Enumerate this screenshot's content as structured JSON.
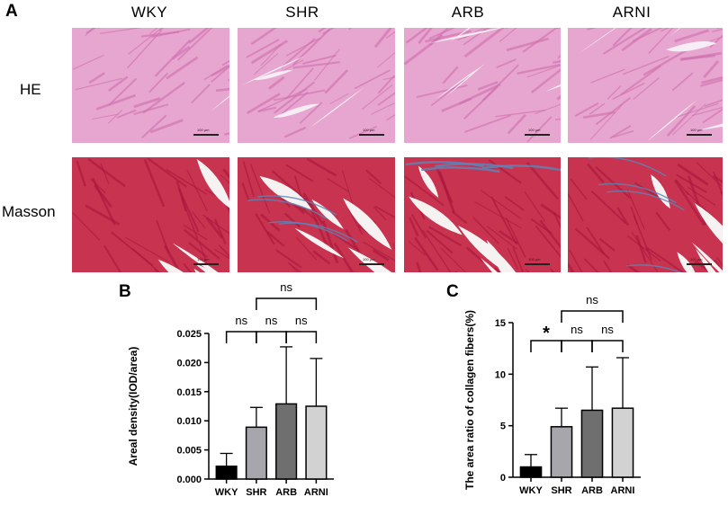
{
  "panel_labels": {
    "a": "A",
    "b": "B",
    "c": "C"
  },
  "histology": {
    "columns": [
      "WKY",
      "SHR",
      "ARB",
      "ARNI"
    ],
    "rows": [
      "HE",
      "Masson"
    ],
    "scale_bar_text": "100 μm",
    "colors": {
      "he_bg": "#e7a6cf",
      "he_fiber": "#cf6fae",
      "he_gap": "#f6eef4",
      "masson_bg": "#c8334f",
      "masson_fiber": "#a8163a",
      "masson_gap": "#f7f2f2",
      "collagen": "#5a86b8"
    }
  },
  "chart_data": [
    {
      "type": "bar",
      "title": "",
      "xlabel": "",
      "ylabel": "Areal density(IOD/area)",
      "categories": [
        "WKY",
        "SHR",
        "ARB",
        "ARNI"
      ],
      "values": [
        0.0022,
        0.0089,
        0.0129,
        0.0125
      ],
      "errors": [
        0.0022,
        0.0034,
        0.0098,
        0.0082
      ],
      "bar_colors": [
        "#000000",
        "#a6a6ac",
        "#6f6f6f",
        "#d2d2d2"
      ],
      "ylim": [
        0,
        0.025
      ],
      "yticks": [
        0.0,
        0.005,
        0.01,
        0.015,
        0.02,
        0.025
      ],
      "ytick_labels": [
        "0.000",
        "0.005",
        "0.010",
        "0.015",
        "0.020",
        "0.025"
      ],
      "grid": false,
      "significance": [
        {
          "from": 0,
          "to": 1,
          "label": "ns",
          "level": 1
        },
        {
          "from": 1,
          "to": 2,
          "label": "ns",
          "level": 1
        },
        {
          "from": 2,
          "to": 3,
          "label": "ns",
          "level": 1
        },
        {
          "from": 1,
          "to": 3,
          "label": "ns",
          "level": 2
        }
      ]
    },
    {
      "type": "bar",
      "title": "",
      "xlabel": "",
      "ylabel": "The area ratio of collagen fibers(%)",
      "categories": [
        "WKY",
        "SHR",
        "ARB",
        "ARNI"
      ],
      "values": [
        1.0,
        4.9,
        6.5,
        6.7
      ],
      "errors": [
        1.2,
        1.8,
        4.2,
        4.9
      ],
      "bar_colors": [
        "#000000",
        "#a6a6ac",
        "#6f6f6f",
        "#d2d2d2"
      ],
      "ylim": [
        0,
        15
      ],
      "yticks": [
        0,
        5,
        10,
        15
      ],
      "ytick_labels": [
        "0",
        "5",
        "10",
        "15"
      ],
      "grid": false,
      "significance": [
        {
          "from": 0,
          "to": 1,
          "label": "*",
          "level": 1
        },
        {
          "from": 1,
          "to": 2,
          "label": "ns",
          "level": 1
        },
        {
          "from": 2,
          "to": 3,
          "label": "ns",
          "level": 1
        },
        {
          "from": 1,
          "to": 3,
          "label": "ns",
          "level": 2
        }
      ]
    }
  ]
}
